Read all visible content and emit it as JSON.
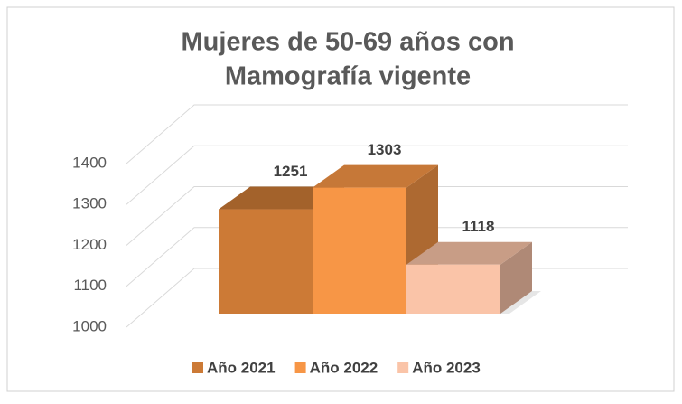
{
  "chart_data": {
    "type": "bar3d",
    "title": [
      "Mujeres de 50-69 años con",
      "Mamografía vigente"
    ],
    "series": [
      {
        "name": "Año 2021",
        "color": "#cc7a36",
        "values": [
          1251
        ]
      },
      {
        "name": "Año 2022",
        "color": "#f79646",
        "values": [
          1303
        ]
      },
      {
        "name": "Año 2023",
        "color": "#fac4a8",
        "values": [
          1118
        ]
      }
    ],
    "ylim": [
      1000,
      1400
    ],
    "yticks": [
      1000,
      1100,
      1200,
      1300,
      1400
    ],
    "grid": true,
    "legend": "bottom"
  }
}
